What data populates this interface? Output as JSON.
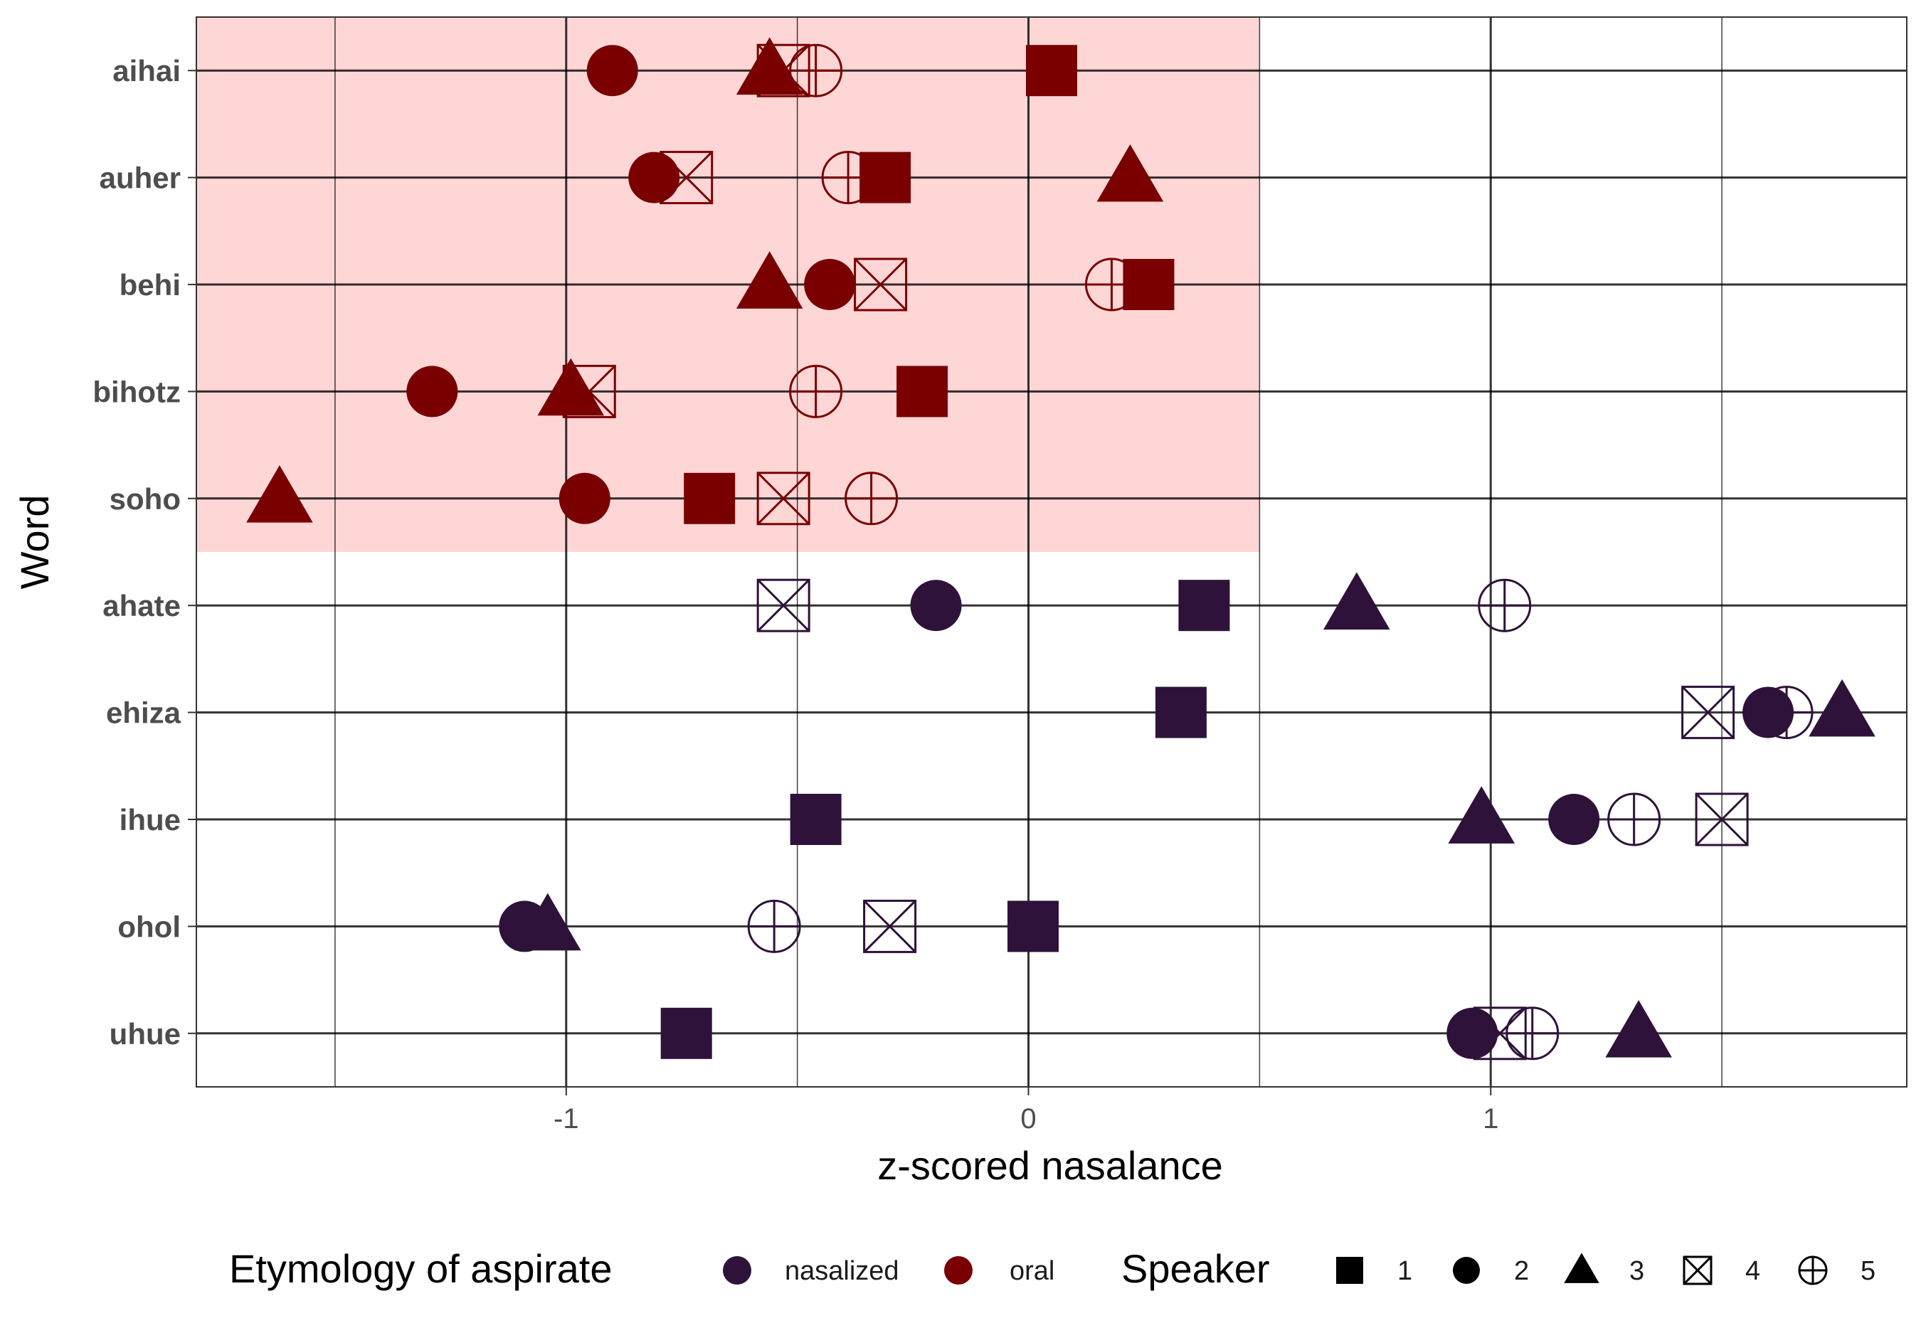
{
  "chart_data": {
    "type": "scatter",
    "xlabel": "z-scored nasalance",
    "ylabel": "Word",
    "xlim": [
      -1.8,
      1.9
    ],
    "x_ticks": [
      -1,
      0,
      1
    ],
    "x_tick_labels": [
      "-1",
      "0",
      "1"
    ],
    "grid": true,
    "highlight": {
      "x_range": [
        -1.8,
        0.5
      ],
      "words": [
        "aihai",
        "auher",
        "behi",
        "bihotz",
        "soho"
      ],
      "color": "#ffd6d6"
    },
    "words": [
      "aihai",
      "auher",
      "behi",
      "bihotz",
      "soho",
      "ahate",
      "ehiza",
      "ihue",
      "ohol",
      "uhue"
    ],
    "colors": {
      "nasalized": "#2e1239",
      "oral": "#7a0000"
    },
    "color_legend": {
      "title": "Etymology of aspirate",
      "entries": [
        {
          "key": "nasalized",
          "label": "nasalized"
        },
        {
          "key": "oral",
          "label": "oral"
        }
      ]
    },
    "shape_legend": {
      "title": "Speaker",
      "entries": [
        {
          "speaker": 1,
          "label": "1",
          "shape": "square"
        },
        {
          "speaker": 2,
          "label": "2",
          "shape": "circle"
        },
        {
          "speaker": 3,
          "label": "3",
          "shape": "triangle"
        },
        {
          "speaker": 4,
          "label": "4",
          "shape": "boxed-x"
        },
        {
          "speaker": 5,
          "label": "5",
          "shape": "circle-plus"
        }
      ]
    },
    "series": [
      {
        "word": "aihai",
        "etymology": "oral",
        "points": [
          {
            "speaker": 1,
            "x": 0.05
          },
          {
            "speaker": 2,
            "x": -0.9
          },
          {
            "speaker": 3,
            "x": -0.56
          },
          {
            "speaker": 4,
            "x": -0.53
          },
          {
            "speaker": 5,
            "x": -0.46
          }
        ]
      },
      {
        "word": "auher",
        "etymology": "oral",
        "points": [
          {
            "speaker": 1,
            "x": -0.31
          },
          {
            "speaker": 2,
            "x": -0.81
          },
          {
            "speaker": 3,
            "x": 0.22
          },
          {
            "speaker": 4,
            "x": -0.74
          },
          {
            "speaker": 5,
            "x": -0.39
          }
        ]
      },
      {
        "word": "behi",
        "etymology": "oral",
        "points": [
          {
            "speaker": 1,
            "x": 0.26
          },
          {
            "speaker": 2,
            "x": -0.43
          },
          {
            "speaker": 3,
            "x": -0.56
          },
          {
            "speaker": 4,
            "x": -0.32
          },
          {
            "speaker": 5,
            "x": 0.18
          }
        ]
      },
      {
        "word": "bihotz",
        "etymology": "oral",
        "points": [
          {
            "speaker": 1,
            "x": -0.23
          },
          {
            "speaker": 2,
            "x": -1.29
          },
          {
            "speaker": 3,
            "x": -0.99
          },
          {
            "speaker": 4,
            "x": -0.95
          },
          {
            "speaker": 5,
            "x": -0.46
          }
        ]
      },
      {
        "word": "soho",
        "etymology": "oral",
        "points": [
          {
            "speaker": 1,
            "x": -0.69
          },
          {
            "speaker": 2,
            "x": -0.96
          },
          {
            "speaker": 3,
            "x": -1.62
          },
          {
            "speaker": 4,
            "x": -0.53
          },
          {
            "speaker": 5,
            "x": -0.34
          }
        ]
      },
      {
        "word": "ahate",
        "etymology": "nasalized",
        "points": [
          {
            "speaker": 1,
            "x": 0.38
          },
          {
            "speaker": 2,
            "x": -0.2
          },
          {
            "speaker": 3,
            "x": 0.71
          },
          {
            "speaker": 4,
            "x": -0.53
          },
          {
            "speaker": 5,
            "x": 1.03
          }
        ]
      },
      {
        "word": "ehiza",
        "etymology": "nasalized",
        "points": [
          {
            "speaker": 1,
            "x": 0.33
          },
          {
            "speaker": 2,
            "x": 1.6
          },
          {
            "speaker": 3,
            "x": 1.76
          },
          {
            "speaker": 4,
            "x": 1.47
          },
          {
            "speaker": 5,
            "x": 1.64
          }
        ]
      },
      {
        "word": "ihue",
        "etymology": "nasalized",
        "points": [
          {
            "speaker": 1,
            "x": -0.46
          },
          {
            "speaker": 2,
            "x": 1.18
          },
          {
            "speaker": 3,
            "x": 0.98
          },
          {
            "speaker": 4,
            "x": 1.5
          },
          {
            "speaker": 5,
            "x": 1.31
          }
        ]
      },
      {
        "word": "ohol",
        "etymology": "nasalized",
        "points": [
          {
            "speaker": 1,
            "x": 0.01
          },
          {
            "speaker": 2,
            "x": -1.09
          },
          {
            "speaker": 3,
            "x": -1.04
          },
          {
            "speaker": 4,
            "x": -0.3
          },
          {
            "speaker": 5,
            "x": -0.55
          }
        ]
      },
      {
        "word": "uhue",
        "etymology": "nasalized",
        "points": [
          {
            "speaker": 1,
            "x": -0.74
          },
          {
            "speaker": 2,
            "x": 0.96
          },
          {
            "speaker": 3,
            "x": 1.32
          },
          {
            "speaker": 4,
            "x": 1.02
          },
          {
            "speaker": 5,
            "x": 1.09
          }
        ]
      }
    ]
  }
}
